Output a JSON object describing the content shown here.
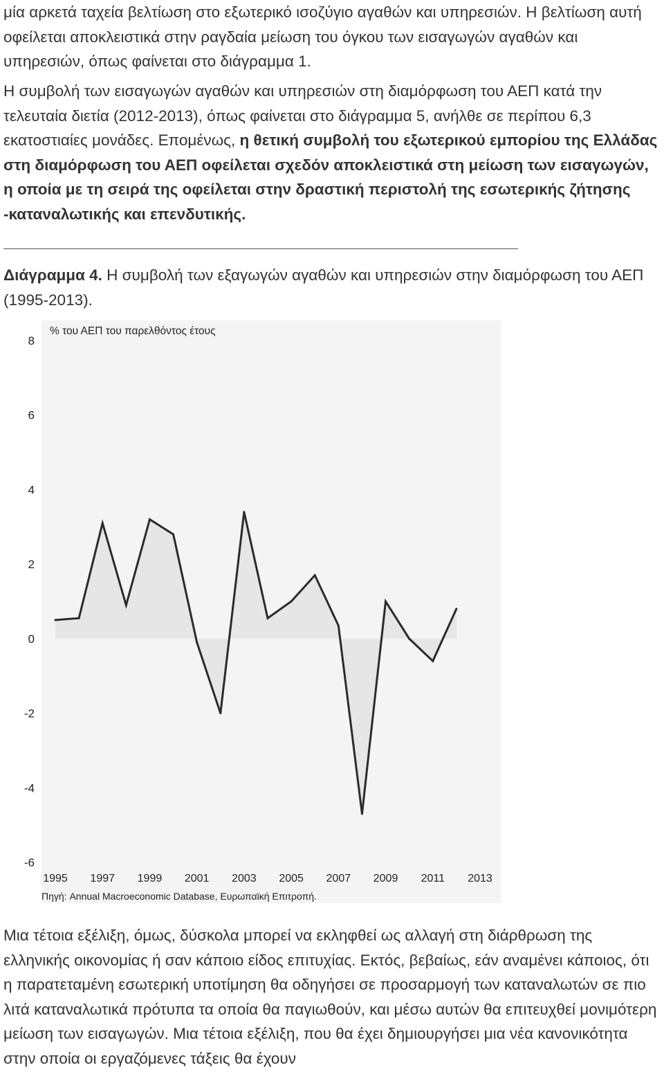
{
  "paragraph1": {
    "text": "μία αρκετά ταχεία βελτίωση στο εξωτερικό ισοζύγιο αγαθών και υπηρεσιών. Η βελτίωση αυτή οφείλεται αποκλειστικά στην ραγδαία μείωση του όγκου των εισαγωγών αγαθών και υπηρεσιών, όπως φαίνεται στο διάγραμμα 1."
  },
  "paragraph2": {
    "text_plain": "Η συμβολή των εισαγωγών αγαθών και υπηρεσιών στη διαμόρφωση του ΑΕΠ κατά την τελευταία διετία (2012-2013), όπως φαίνεται στο διάγραμμα 5, ανήλθε σε περίπου 6,3 εκατοστιαίες μονάδες. Επομένως,",
    "text_bold": "η θετική συμβολή του εξωτερικού εμπορίου της Ελλάδας στη διαμόρφωση του ΑΕΠ οφείλεται σχεδόν αποκλειστικά στη μείωση των εισαγωγών, η οποία με τη σειρά της οφείλεται στην δραστική περιστολή της εσωτερικής ζήτησης -καταναλωτικής και επενδυτικής."
  },
  "caption": {
    "label": "Διάγραμμα 4.",
    "text": "Η συμβολή των εξαγωγών αγαθών και υπηρεσιών στην διαμόρφωση του ΑΕΠ (1995-2013)."
  },
  "chart_data": {
    "type": "area",
    "ylabel": "% του ΑΕΠ του παρελθόντος έτους",
    "source": "Πηγή: Annual Macroeconomic Database, Ευρωπαϊκή Επιτροπή.",
    "ylim": [
      -6,
      8
    ],
    "yticks": [
      8,
      6,
      4,
      2,
      0,
      -2,
      -4,
      -6
    ],
    "xticks": [
      "1995",
      "1997",
      "1999",
      "2001",
      "2003",
      "2005",
      "2007",
      "2009",
      "2011",
      "2013"
    ],
    "x": [
      1995,
      1996,
      1997,
      1998,
      1999,
      2000,
      2001,
      2002,
      2003,
      2004,
      2005,
      2006,
      2007,
      2008,
      2009,
      2010,
      2011,
      2012,
      2013
    ],
    "values": [
      0.5,
      0.55,
      3.1,
      0.9,
      3.2,
      2.8,
      -0.1,
      -2.0,
      3.4,
      0.55,
      1.0,
      1.7,
      0.35,
      -4.7,
      1.0,
      0.0,
      -0.6,
      0.8,
      null
    ],
    "grid": false,
    "colors": {
      "line": "#2b2b2b",
      "fill": "#e6e6e6",
      "background": "#f4f4f4"
    }
  },
  "paragraph3": {
    "text": "Μια τέτοια εξέλιξη, όμως, δύσκολα μπορεί να εκληφθεί ως αλλαγή στη διάρθρωση της ελληνικής οικονομίας ή σαν κάποιο είδος επιτυχίας. Εκτός, βεβαίως, εάν αναμένει κάποιος, ότι η παρατεταμένη εσωτερική υποτίμηση θα οδηγήσει σε προσαρμογή των καταναλωτών σε πιο λιτά καταναλωτικά πρότυπα τα οποία θα παγιωθούν, και μέσω αυτών θα επιτευχθεί μονιμότερη μείωση των εισαγωγών. Μια τέτοια εξέλιξη, που θα έχει δημιουργήσει μια νέα κανονικότητα στην οποία οι εργαζόμενες τάξεις θα έχουν"
  }
}
